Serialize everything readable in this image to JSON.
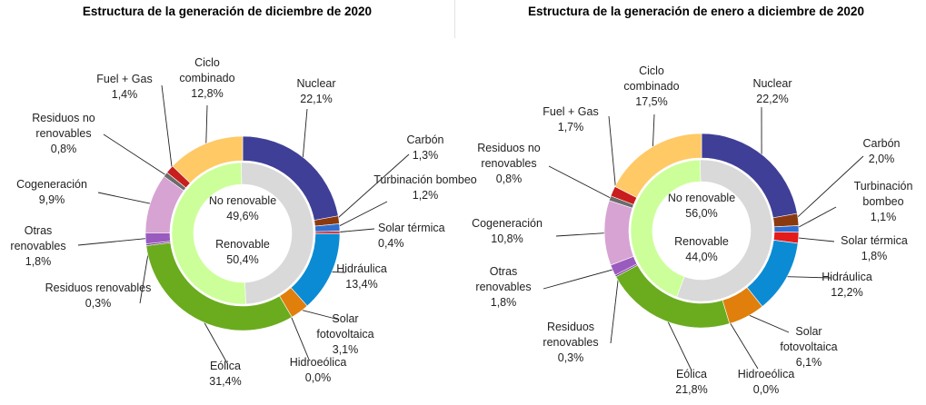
{
  "chart_data": [
    {
      "type": "pie",
      "title": "Estructura de la generación de diciembre de 2020",
      "inner_ring": [
        {
          "label": "No renovable",
          "value": 49.6,
          "value_label": "49,6%",
          "color": "#d9d9d9"
        },
        {
          "label": "Renovable",
          "value": 50.4,
          "value_label": "50,4%",
          "color": "#ccff99"
        }
      ],
      "outer_ring": [
        {
          "label": "Nuclear",
          "value": 22.1,
          "value_label": "22,1%",
          "color": "#3f3f97"
        },
        {
          "label": "Carbón",
          "value": 1.3,
          "value_label": "1,3%",
          "color": "#8b3a0f"
        },
        {
          "label": "Turbinación bombeo",
          "value": 1.2,
          "value_label": "1,2%",
          "color": "#2f6fd1"
        },
        {
          "label": "Solar térmica",
          "value": 0.4,
          "value_label": "0,4%",
          "color": "#e21b1b"
        },
        {
          "label": "Hidráulica",
          "value": 13.4,
          "value_label": "13,4%",
          "color": "#0b8bd4"
        },
        {
          "label": "Solar fotovoltaica",
          "value": 3.1,
          "value_label": "3,1%",
          "color": "#e07f0b"
        },
        {
          "label": "Hidroeólica",
          "value": 0.0,
          "value_label": "0,0%",
          "color": "#5aa52a"
        },
        {
          "label": "Eólica",
          "value": 31.4,
          "value_label": "31,4%",
          "color": "#6aac1e"
        },
        {
          "label": "Residuos renovables",
          "value": 0.3,
          "value_label": "0,3%",
          "color": "#7a3c8f"
        },
        {
          "label": "Otras renovables",
          "value": 1.8,
          "value_label": "1,8%",
          "color": "#9a5bbf"
        },
        {
          "label": "Cogeneración",
          "value": 9.9,
          "value_label": "9,9%",
          "color": "#d6a3d2"
        },
        {
          "label": "Residuos no renovables",
          "value": 0.8,
          "value_label": "0,8%",
          "color": "#6b6b6b"
        },
        {
          "label": "Fuel + Gas",
          "value": 1.4,
          "value_label": "1,4%",
          "color": "#c81e1e"
        },
        {
          "label": "Ciclo combinado",
          "value": 12.8,
          "value_label": "12,8%",
          "color": "#ffc966"
        }
      ]
    },
    {
      "type": "pie",
      "title": "Estructura de la generación de enero a diciembre de 2020",
      "inner_ring": [
        {
          "label": "No renovable",
          "value": 56.0,
          "value_label": "56,0%",
          "color": "#d9d9d9"
        },
        {
          "label": "Renovable",
          "value": 44.0,
          "value_label": "44,0%",
          "color": "#ccff99"
        }
      ],
      "outer_ring": [
        {
          "label": "Nuclear",
          "value": 22.2,
          "value_label": "22,2%",
          "color": "#3f3f97"
        },
        {
          "label": "Carbón",
          "value": 2.0,
          "value_label": "2,0%",
          "color": "#8b3a0f"
        },
        {
          "label": "Turbinación bombeo",
          "value": 1.1,
          "value_label": "1,1%",
          "color": "#2f6fd1"
        },
        {
          "label": "Solar térmica",
          "value": 1.8,
          "value_label": "1,8%",
          "color": "#e21b1b"
        },
        {
          "label": "Hidráulica",
          "value": 12.2,
          "value_label": "12,2%",
          "color": "#0b8bd4"
        },
        {
          "label": "Solar fotovoltaica",
          "value": 6.1,
          "value_label": "6,1%",
          "color": "#e07f0b"
        },
        {
          "label": "Hidroeólica",
          "value": 0.0,
          "value_label": "0,0%",
          "color": "#5aa52a"
        },
        {
          "label": "Eólica",
          "value": 21.8,
          "value_label": "21,8%",
          "color": "#6aac1e"
        },
        {
          "label": "Residuos renovables",
          "value": 0.3,
          "value_label": "0,3%",
          "color": "#7a3c8f"
        },
        {
          "label": "Otras renovables",
          "value": 1.8,
          "value_label": "1,8%",
          "color": "#9a5bbf"
        },
        {
          "label": "Cogeneración",
          "value": 10.8,
          "value_label": "10,8%",
          "color": "#d6a3d2"
        },
        {
          "label": "Residuos no renovables",
          "value": 0.8,
          "value_label": "0,8%",
          "color": "#6b6b6b"
        },
        {
          "label": "Fuel + Gas",
          "value": 1.7,
          "value_label": "1,7%",
          "color": "#c81e1e"
        },
        {
          "label": "Ciclo combinado",
          "value": 17.5,
          "value_label": "17,5%",
          "color": "#ffc966"
        }
      ]
    }
  ]
}
